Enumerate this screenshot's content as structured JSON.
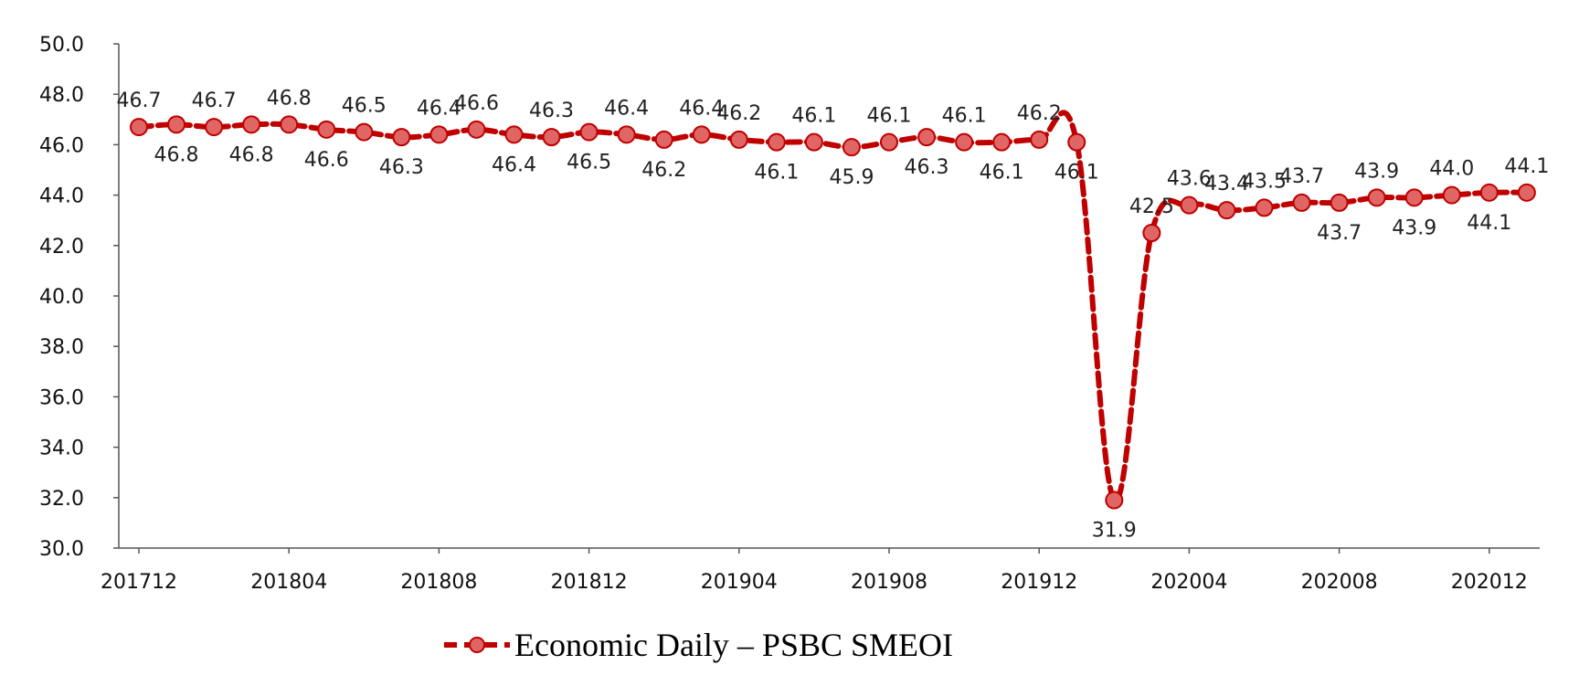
{
  "chart_data": {
    "type": "line",
    "title": "",
    "xlabel": "",
    "ylabel": "",
    "ylim": [
      30,
      50
    ],
    "yticks": [
      "30.0",
      "32.0",
      "34.0",
      "36.0",
      "38.0",
      "40.0",
      "42.0",
      "44.0",
      "46.0",
      "48.0",
      "50.0"
    ],
    "xtick_labels": [
      "201712",
      "201804",
      "201808",
      "201812",
      "201904",
      "201908",
      "201912",
      "202004",
      "202008",
      "202012"
    ],
    "categories": [
      "201712",
      "201801",
      "201802",
      "201803",
      "201804",
      "201805",
      "201806",
      "201807",
      "201808",
      "201809",
      "201810",
      "201811",
      "201812",
      "201901",
      "201902",
      "201903",
      "201904",
      "201905",
      "201906",
      "201907",
      "201908",
      "201909",
      "201910",
      "201911",
      "201912",
      "202001",
      "202002",
      "202003",
      "202004",
      "202005",
      "202006",
      "202007",
      "202008",
      "202009",
      "202010",
      "202011",
      "202012",
      "202101"
    ],
    "series": [
      {
        "name": "Economic Daily – PSBC SMEOI",
        "color": "#c00000",
        "values": [
          46.7,
          46.8,
          46.7,
          46.8,
          46.8,
          46.6,
          46.5,
          46.3,
          46.4,
          46.6,
          46.4,
          46.3,
          46.5,
          46.4,
          46.2,
          46.4,
          46.2,
          46.1,
          46.1,
          45.9,
          46.1,
          46.3,
          46.1,
          46.1,
          46.2,
          46.1,
          31.9,
          42.5,
          43.6,
          43.4,
          43.5,
          43.7,
          43.7,
          43.9,
          43.9,
          44.0,
          44.1,
          44.1
        ],
        "labels": [
          "46.7",
          "46.8",
          "46.7",
          "46.8",
          "46.8",
          "46.6",
          "46.5",
          "46.3",
          "46.4",
          "46.6",
          "46.4",
          "46.3",
          "46.5",
          "46.4",
          "46.2",
          "46.4",
          "46.2",
          "46.1",
          "46.1",
          "45.9",
          "46.1",
          "46.3",
          "46.1",
          "46.1",
          "46.2",
          "46.1",
          "31.9",
          "42.5",
          "43.6",
          "43.4",
          "43.5",
          "43.7",
          "43.7",
          "43.9",
          "43.9",
          "44.0",
          "44.1",
          "44.1"
        ],
        "label_positions": [
          "above",
          "below",
          "above",
          "below",
          "above",
          "below",
          "above",
          "below",
          "above",
          "above",
          "below",
          "above",
          "below",
          "above",
          "below",
          "above",
          "above",
          "below",
          "above",
          "below",
          "above",
          "below",
          "above",
          "below",
          "above",
          "below",
          "below",
          "above",
          "above",
          "above",
          "above",
          "above",
          "below",
          "above",
          "below",
          "above",
          "below",
          "above"
        ]
      }
    ],
    "legend": {
      "position": "bottom-center",
      "entries": [
        "Economic Daily – PSBC SMEOI"
      ]
    }
  }
}
